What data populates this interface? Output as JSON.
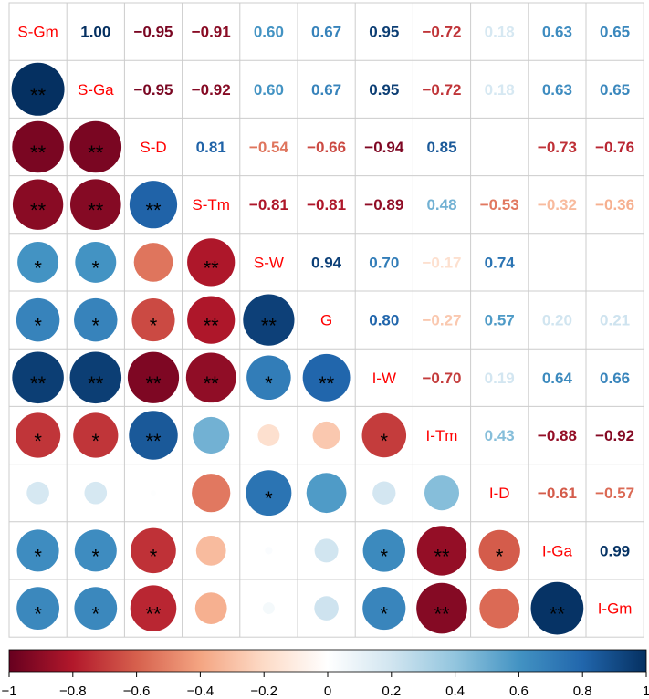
{
  "chart_data": {
    "type": "heatmap",
    "variables": [
      "S-Gm",
      "S-Ga",
      "S-D",
      "S-Tm",
      "S-W",
      "G",
      "I-W",
      "I-Tm",
      "I-D",
      "I-Ga",
      "I-Gm"
    ],
    "upper_display": "number",
    "lower_display": "circle",
    "significance_marks": true,
    "label_color": "#ff0000",
    "matrix": [
      [
        1.0,
        1.0,
        -0.95,
        -0.91,
        0.6,
        0.67,
        0.95,
        -0.72,
        0.18,
        0.63,
        0.65
      ],
      [
        1.0,
        1.0,
        -0.95,
        -0.92,
        0.6,
        0.67,
        0.95,
        -0.72,
        0.18,
        0.63,
        0.65
      ],
      [
        -0.95,
        -0.95,
        1.0,
        0.81,
        -0.54,
        -0.66,
        -0.94,
        0.85,
        0.01,
        -0.73,
        -0.76
      ],
      [
        -0.91,
        -0.92,
        0.81,
        1.0,
        -0.81,
        -0.81,
        -0.89,
        0.48,
        -0.53,
        -0.32,
        -0.36
      ],
      [
        0.6,
        0.6,
        -0.54,
        -0.81,
        1.0,
        0.94,
        0.7,
        -0.17,
        0.74,
        0.02,
        0.05
      ],
      [
        0.67,
        0.67,
        -0.66,
        -0.81,
        0.94,
        1.0,
        0.8,
        -0.27,
        0.57,
        0.2,
        0.21
      ],
      [
        0.95,
        0.95,
        -0.94,
        -0.89,
        0.7,
        0.8,
        1.0,
        -0.7,
        0.19,
        0.64,
        0.66
      ],
      [
        -0.72,
        -0.72,
        0.85,
        0.48,
        -0.17,
        -0.27,
        -0.7,
        1.0,
        0.43,
        -0.88,
        -0.92
      ],
      [
        0.18,
        0.18,
        0.01,
        -0.53,
        0.74,
        0.57,
        0.19,
        0.43,
        1.0,
        -0.61,
        -0.57
      ],
      [
        0.63,
        0.63,
        -0.73,
        -0.32,
        0.02,
        0.2,
        0.64,
        -0.88,
        -0.61,
        1.0,
        0.99
      ],
      [
        0.65,
        0.65,
        -0.76,
        -0.36,
        0.05,
        0.21,
        0.66,
        -0.92,
        -0.57,
        0.99,
        1.0
      ]
    ],
    "lower_marks": [
      [],
      [
        "**"
      ],
      [
        "**",
        "**"
      ],
      [
        "**",
        "**",
        "**"
      ],
      [
        "*",
        "*",
        "",
        "**"
      ],
      [
        "*",
        "*",
        "*",
        "**",
        "**"
      ],
      [
        "**",
        "**",
        "**",
        "**",
        "*",
        "**"
      ],
      [
        "*",
        "*",
        "**",
        "",
        "",
        "",
        "*"
      ],
      [
        "",
        "",
        "",
        "",
        "*",
        "",
        "",
        ""
      ],
      [
        "*",
        "*",
        "*",
        "",
        "",
        "",
        "*",
        "**",
        "*"
      ],
      [
        "*",
        "*",
        "**",
        "",
        "",
        "",
        "*",
        "**",
        "",
        "**"
      ]
    ],
    "colorbar": {
      "min": -1,
      "max": 1,
      "ticks": [
        -1,
        -0.8,
        -0.6,
        -0.4,
        -0.2,
        0,
        0.2,
        0.4,
        0.6,
        0.8,
        1
      ],
      "tick_labels": [
        "−1",
        "−0.8",
        "−0.6",
        "−0.4",
        "−0.2",
        "0",
        "0.2",
        "0.4",
        "0.6",
        "0.8",
        "1"
      ],
      "placement": "bottom"
    },
    "colors": [
      "#67001f",
      "#b2182b",
      "#d6604d",
      "#f4a582",
      "#fddbc7",
      "#ffffff",
      "#d1e5f0",
      "#92c5de",
      "#4393c3",
      "#2166ac",
      "#053061"
    ]
  }
}
